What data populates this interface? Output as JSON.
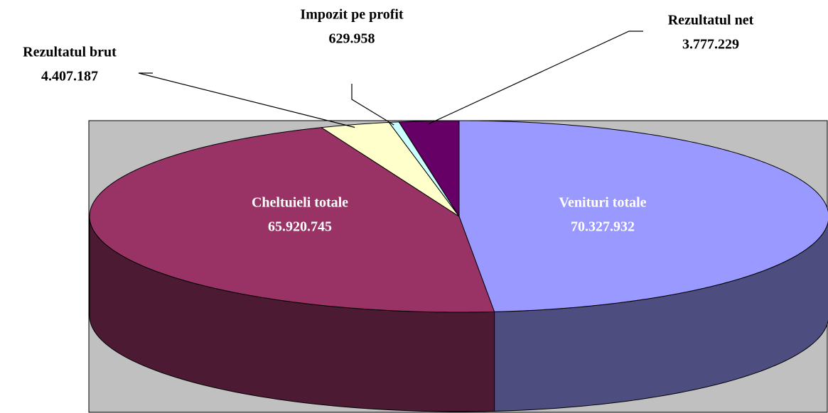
{
  "chart_data": {
    "type": "pie3d",
    "categories": [
      "Venituri totale",
      "Cheltuieli totale",
      "Rezultatul brut",
      "Impozit pe profit",
      "Rezultatul net"
    ],
    "values": [
      70327932,
      65920745,
      4407187,
      629958,
      3777229
    ],
    "value_labels": [
      "70.327.932",
      "65.920.745",
      "4.407.187",
      "629.958",
      "3.777.229"
    ],
    "colors": [
      "#9999ff",
      "#993366",
      "#ffffcc",
      "#ccffff",
      "#660066"
    ]
  }
}
